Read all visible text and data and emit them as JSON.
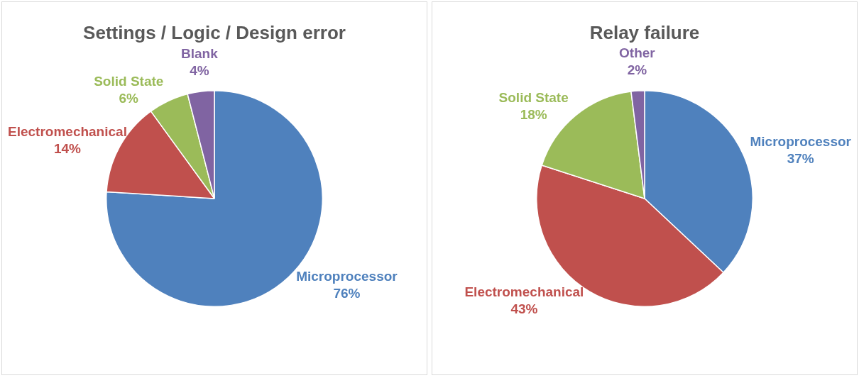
{
  "chart_data": [
    {
      "type": "pie",
      "title": "Settings / Logic / Design error",
      "categories": [
        "Microprocessor",
        "Electromechanical",
        "Solid State",
        "Blank"
      ],
      "values": [
        76,
        14,
        6,
        4
      ],
      "colors": [
        "#4f81bd",
        "#c0504d",
        "#9bbb59",
        "#8064a2"
      ],
      "value_labels": [
        "76%",
        "14%",
        "6%",
        "4%"
      ],
      "legend": false
    },
    {
      "type": "pie",
      "title": "Relay failure",
      "categories": [
        "Microprocessor",
        "Electromechanical",
        "Solid State",
        "Other"
      ],
      "values": [
        37,
        43,
        18,
        2
      ],
      "colors": [
        "#4f81bd",
        "#c0504d",
        "#9bbb59",
        "#8064a2"
      ],
      "value_labels": [
        "37%",
        "43%",
        "18%",
        "2%"
      ],
      "legend": false
    }
  ]
}
